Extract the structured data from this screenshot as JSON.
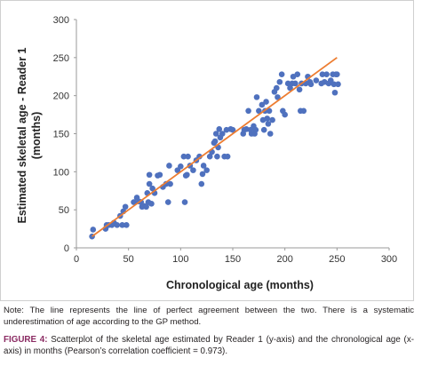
{
  "chart_data": {
    "type": "scatter",
    "xlabel": "Chronological age (months)",
    "ylabel": "Estimated skeletal age - Reader 1 (months)",
    "ylabel_lines": [
      "Estimated skeletal age - Reader 1",
      "(months)"
    ],
    "xlim": [
      0,
      300
    ],
    "ylim": [
      0,
      300
    ],
    "xticks": [
      "0",
      "50",
      "100",
      "150",
      "200",
      "250",
      "300"
    ],
    "yticks": [
      "0",
      "50",
      "100",
      "150",
      "200",
      "250",
      "300"
    ],
    "grid": false,
    "legend": "none",
    "point_color": "#4f71be",
    "line_color": "#ed7d31",
    "reference_line": {
      "x": [
        15,
        250
      ],
      "y": [
        15,
        250
      ]
    },
    "points": [
      [
        15,
        15
      ],
      [
        16,
        24
      ],
      [
        28,
        25
      ],
      [
        29,
        30
      ],
      [
        31,
        30
      ],
      [
        34,
        30
      ],
      [
        36,
        33
      ],
      [
        39,
        30
      ],
      [
        42,
        42
      ],
      [
        44,
        30
      ],
      [
        45,
        48
      ],
      [
        47,
        54
      ],
      [
        48,
        30
      ],
      [
        55,
        60
      ],
      [
        58,
        66
      ],
      [
        60,
        61
      ],
      [
        62,
        60
      ],
      [
        63,
        54
      ],
      [
        65,
        55
      ],
      [
        67,
        54
      ],
      [
        68,
        72
      ],
      [
        69,
        60
      ],
      [
        70,
        84
      ],
      [
        70,
        96
      ],
      [
        72,
        58
      ],
      [
        73,
        78
      ],
      [
        75,
        72
      ],
      [
        78,
        95
      ],
      [
        80,
        96
      ],
      [
        83,
        80
      ],
      [
        86,
        84
      ],
      [
        88,
        60
      ],
      [
        89,
        108
      ],
      [
        90,
        84
      ],
      [
        97,
        102
      ],
      [
        100,
        107
      ],
      [
        103,
        120
      ],
      [
        104,
        60
      ],
      [
        105,
        95
      ],
      [
        106,
        96
      ],
      [
        107,
        120
      ],
      [
        109,
        108
      ],
      [
        112,
        102
      ],
      [
        115,
        115
      ],
      [
        118,
        120
      ],
      [
        120,
        84
      ],
      [
        121,
        97
      ],
      [
        122,
        108
      ],
      [
        125,
        102
      ],
      [
        128,
        120
      ],
      [
        130,
        126
      ],
      [
        132,
        138
      ],
      [
        133,
        140
      ],
      [
        134,
        150
      ],
      [
        135,
        120
      ],
      [
        136,
        132
      ],
      [
        137,
        156
      ],
      [
        138,
        145
      ],
      [
        140,
        150
      ],
      [
        142,
        120
      ],
      [
        144,
        155
      ],
      [
        145,
        120
      ],
      [
        148,
        156
      ],
      [
        150,
        155
      ],
      [
        160,
        150
      ],
      [
        161,
        155
      ],
      [
        163,
        156
      ],
      [
        165,
        180
      ],
      [
        167,
        155
      ],
      [
        168,
        150
      ],
      [
        170,
        160
      ],
      [
        171,
        150
      ],
      [
        172,
        155
      ],
      [
        173,
        198
      ],
      [
        175,
        180
      ],
      [
        178,
        188
      ],
      [
        179,
        168
      ],
      [
        180,
        155
      ],
      [
        181,
        180
      ],
      [
        182,
        192
      ],
      [
        183,
        170
      ],
      [
        184,
        163
      ],
      [
        185,
        180
      ],
      [
        186,
        150
      ],
      [
        188,
        168
      ],
      [
        190,
        205
      ],
      [
        192,
        210
      ],
      [
        193,
        198
      ],
      [
        195,
        218
      ],
      [
        197,
        228
      ],
      [
        198,
        180
      ],
      [
        200,
        175
      ],
      [
        203,
        216
      ],
      [
        205,
        210
      ],
      [
        207,
        216
      ],
      [
        208,
        225
      ],
      [
        210,
        216
      ],
      [
        212,
        228
      ],
      [
        214,
        208
      ],
      [
        215,
        180
      ],
      [
        216,
        216
      ],
      [
        218,
        180
      ],
      [
        220,
        216
      ],
      [
        222,
        225
      ],
      [
        224,
        218
      ],
      [
        225,
        215
      ],
      [
        230,
        220
      ],
      [
        235,
        216
      ],
      [
        236,
        228
      ],
      [
        238,
        218
      ],
      [
        240,
        228
      ],
      [
        242,
        216
      ],
      [
        244,
        220
      ],
      [
        246,
        228
      ],
      [
        247,
        215
      ],
      [
        248,
        204
      ],
      [
        249,
        228
      ],
      [
        250,
        228
      ],
      [
        251,
        215
      ]
    ]
  },
  "note_text": "Note: The line represents the line of perfect agreement between the two. There is a systematic underestimation of age according to the GP method.",
  "figure_caption": {
    "label": "FIGURE 4:",
    "text": " Scatterplot of the skeletal age estimated by Reader 1 (y-axis) and the chronological age (x-axis) in months (Pearson’s correlation coefficient = 0.973)."
  }
}
